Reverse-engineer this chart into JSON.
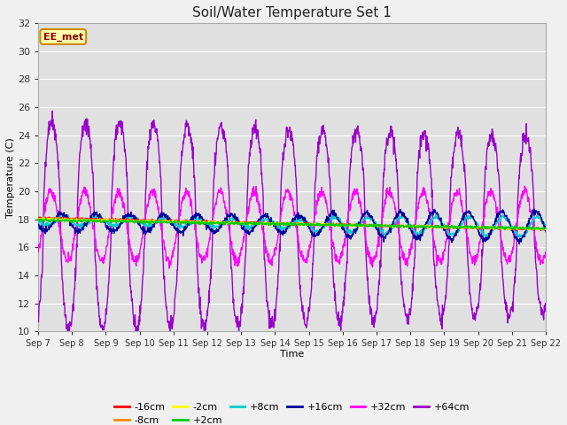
{
  "title": "Soil/Water Temperature Set 1",
  "xlabel": "Time",
  "ylabel": "Temperature (C)",
  "ylim": [
    10,
    32
  ],
  "yticks": [
    10,
    12,
    14,
    16,
    18,
    20,
    22,
    24,
    26,
    28,
    30,
    32
  ],
  "date_labels": [
    "Sep 7",
    "Sep 8",
    "Sep 9",
    "Sep 10",
    "Sep 11",
    "Sep 12",
    "Sep 13",
    "Sep 14",
    "Sep 15",
    "Sep 16",
    "Sep 17",
    "Sep 18",
    "Sep 19",
    "Sep 20",
    "Sep 21",
    "Sep 22"
  ],
  "station_label": "EE_met",
  "fig_facecolor": "#f0f0f0",
  "ax_facecolor": "#e0e0e0",
  "grid_color": "#ffffff",
  "series": {
    "-16cm": {
      "color": "#ff0000"
    },
    "-8cm": {
      "color": "#ff8800"
    },
    "-2cm": {
      "color": "#ffff00"
    },
    "+2cm": {
      "color": "#00cc00"
    },
    "+8cm": {
      "color": "#00cccc"
    },
    "+16cm": {
      "color": "#000099"
    },
    "+32cm": {
      "color": "#ff00ff"
    },
    "+64cm": {
      "color": "#9900cc"
    }
  },
  "legend_order": [
    "-16cm",
    "-8cm",
    "-2cm",
    "+2cm",
    "+8cm",
    "+16cm",
    "+32cm",
    "+64cm"
  ]
}
